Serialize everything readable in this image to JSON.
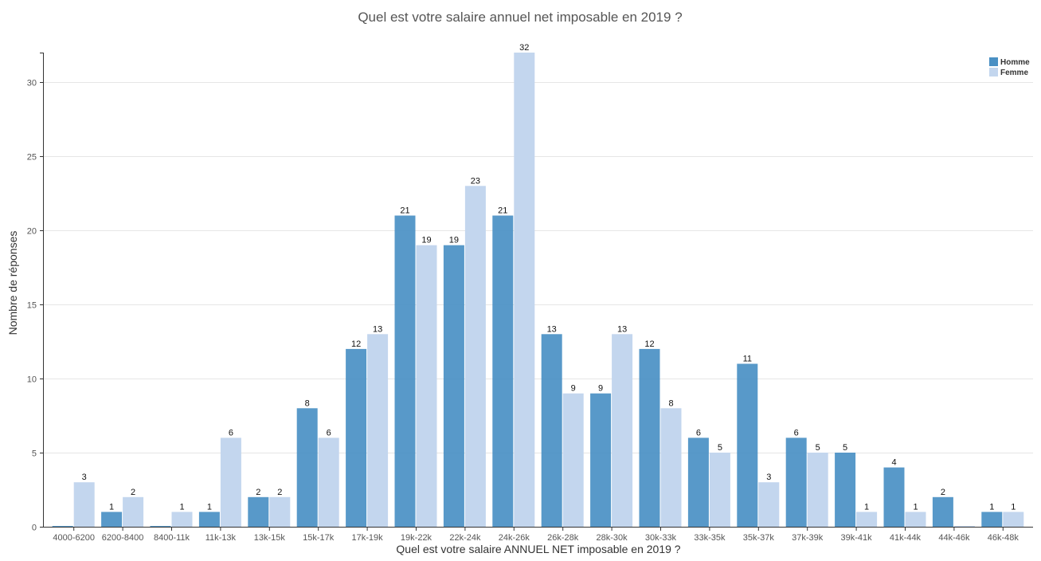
{
  "chart_data": {
    "type": "bar",
    "title": "Quel est votre salaire annuel net imposable en 2019 ?",
    "xlabel": "Quel est votre salaire ANNUEL NET imposable en 2019 ?",
    "ylabel": "Nombre de réponses",
    "ylim": [
      0,
      32
    ],
    "yticks": [
      0,
      5,
      10,
      15,
      20,
      25,
      30
    ],
    "grid": true,
    "legend_position": "top-right",
    "categories": [
      "4000-6200",
      "6200-8400",
      "8400-11k",
      "11k-13k",
      "13k-15k",
      "15k-17k",
      "17k-19k",
      "19k-22k",
      "22k-24k",
      "24k-26k",
      "26k-28k",
      "28k-30k",
      "30k-33k",
      "33k-35k",
      "35k-37k",
      "37k-39k",
      "39k-41k",
      "41k-44k",
      "44k-46k",
      "46k-48k"
    ],
    "series": [
      {
        "name": "Homme",
        "color": "#4a90c4",
        "values": [
          0,
          1,
          0,
          1,
          2,
          8,
          12,
          21,
          19,
          21,
          13,
          9,
          12,
          6,
          11,
          6,
          5,
          4,
          2,
          1
        ]
      },
      {
        "name": "Femme",
        "color": "#c3d6ee",
        "values": [
          3,
          2,
          1,
          6,
          2,
          6,
          13,
          19,
          23,
          32,
          9,
          13,
          8,
          5,
          3,
          5,
          1,
          1,
          0,
          1
        ]
      }
    ]
  }
}
